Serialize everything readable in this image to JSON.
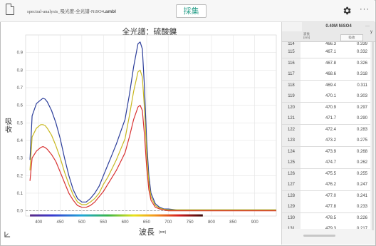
{
  "header": {
    "filename_prefix": "spectral-analysis_吸光度-全光譜-NiSO4",
    "filename_ext": ".ambl",
    "collect_label": "採集",
    "more_label": "···"
  },
  "icons": {
    "document": "document-icon",
    "settings": "gear-icon",
    "more": "more-icon",
    "axis_tool": "axis-scale-icon"
  },
  "chart": {
    "title": "全光譜：硫酸鎳",
    "ylabel": "吸收",
    "xlabel": "波長",
    "xunit": "(nm)"
  },
  "chart_data": {
    "type": "line",
    "title": "全光譜：硫酸鎳",
    "xlabel": "波長 (nm)",
    "ylabel": "吸收",
    "xlim": [
      370,
      950
    ],
    "ylim": [
      -0.03,
      1.0
    ],
    "xticks": [
      400,
      450,
      500,
      550,
      600,
      650,
      700,
      750,
      800,
      850,
      900
    ],
    "yticks": [
      0.0,
      0.1,
      0.2,
      0.3,
      0.4,
      0.5,
      0.6,
      0.7,
      0.8,
      0.9
    ],
    "grid": true,
    "legend": "none",
    "series": [
      {
        "color": "#2b3d9a",
        "x": [
          380,
          385,
          395,
          405,
          410,
          415,
          420,
          430,
          440,
          450,
          460,
          470,
          480,
          490,
          500,
          510,
          520,
          530,
          540,
          550,
          560,
          570,
          580,
          590,
          600,
          610,
          620,
          630,
          635,
          640,
          645,
          650,
          655,
          660,
          670,
          680,
          690,
          700,
          720,
          750,
          800,
          850,
          900,
          950
        ],
        "y": [
          0.29,
          0.54,
          0.61,
          0.63,
          0.64,
          0.635,
          0.62,
          0.57,
          0.5,
          0.41,
          0.3,
          0.2,
          0.12,
          0.07,
          0.05,
          0.05,
          0.07,
          0.1,
          0.14,
          0.2,
          0.26,
          0.32,
          0.38,
          0.45,
          0.52,
          0.66,
          0.82,
          0.95,
          0.96,
          0.92,
          0.7,
          0.4,
          0.2,
          0.1,
          0.04,
          0.02,
          0.01,
          0.01,
          0.005,
          0.005,
          0.005,
          0.005,
          0.005,
          0.005
        ]
      },
      {
        "color": "#c8b821",
        "x": [
          380,
          385,
          395,
          405,
          410,
          415,
          420,
          430,
          440,
          450,
          460,
          470,
          480,
          490,
          500,
          510,
          520,
          530,
          540,
          550,
          560,
          570,
          580,
          590,
          600,
          610,
          620,
          630,
          635,
          640,
          645,
          650,
          655,
          660,
          670,
          680,
          690,
          700,
          720,
          750,
          800,
          850,
          900,
          950
        ],
        "y": [
          0.23,
          0.42,
          0.47,
          0.49,
          0.49,
          0.485,
          0.47,
          0.43,
          0.37,
          0.3,
          0.22,
          0.15,
          0.09,
          0.05,
          0.035,
          0.035,
          0.05,
          0.07,
          0.1,
          0.15,
          0.19,
          0.24,
          0.29,
          0.35,
          0.41,
          0.54,
          0.68,
          0.79,
          0.8,
          0.76,
          0.58,
          0.33,
          0.16,
          0.08,
          0.03,
          0.015,
          0.008,
          0.005,
          0.005,
          0.005,
          0.005,
          0.005,
          0.005,
          0.005
        ]
      },
      {
        "color": "#d83232",
        "x": [
          380,
          385,
          395,
          405,
          410,
          415,
          420,
          430,
          440,
          450,
          460,
          470,
          480,
          490,
          500,
          510,
          520,
          530,
          540,
          550,
          560,
          570,
          580,
          590,
          600,
          610,
          620,
          630,
          635,
          640,
          645,
          650,
          655,
          660,
          670,
          680,
          690,
          700,
          720,
          750,
          800,
          850,
          900,
          950
        ],
        "y": [
          0.17,
          0.3,
          0.34,
          0.36,
          0.365,
          0.36,
          0.35,
          0.32,
          0.28,
          0.22,
          0.16,
          0.1,
          0.06,
          0.03,
          0.02,
          0.02,
          0.03,
          0.05,
          0.08,
          0.11,
          0.15,
          0.19,
          0.23,
          0.28,
          0.33,
          0.42,
          0.52,
          0.59,
          0.6,
          0.57,
          0.43,
          0.25,
          0.12,
          0.06,
          0.02,
          0.01,
          0.005,
          0.0,
          0.0,
          0.0,
          0.0,
          0.0,
          0.0,
          0.0
        ]
      }
    ]
  },
  "table": {
    "column_group": "0.40M NiSO4",
    "menu_label": "···",
    "wavelength_header": "波長\n(nm)",
    "absorbance_header": "吸收",
    "y_label": "y",
    "rows": [
      {
        "idx": "114",
        "wl": "466.3",
        "abs": "0.339"
      },
      {
        "idx": "115",
        "wl": "467.1",
        "abs": "0.332"
      },
      {
        "idx": "116",
        "wl": "467.8",
        "abs": "0.326"
      },
      {
        "idx": "117",
        "wl": "468.6",
        "abs": "0.318"
      },
      {
        "idx": "118",
        "wl": "469.4",
        "abs": "0.311"
      },
      {
        "idx": "119",
        "wl": "470.1",
        "abs": "0.303"
      },
      {
        "idx": "120",
        "wl": "470.9",
        "abs": "0.297"
      },
      {
        "idx": "121",
        "wl": "471.7",
        "abs": "0.290"
      },
      {
        "idx": "122",
        "wl": "472.4",
        "abs": "0.283"
      },
      {
        "idx": "123",
        "wl": "473.2",
        "abs": "0.275"
      },
      {
        "idx": "124",
        "wl": "473.9",
        "abs": "0.268"
      },
      {
        "idx": "125",
        "wl": "474.7",
        "abs": "0.262"
      },
      {
        "idx": "126",
        "wl": "475.5",
        "abs": "0.255"
      },
      {
        "idx": "127",
        "wl": "476.2",
        "abs": "0.247"
      },
      {
        "idx": "128",
        "wl": "477.0",
        "abs": "0.241"
      },
      {
        "idx": "129",
        "wl": "477.8",
        "abs": "0.233"
      },
      {
        "idx": "130",
        "wl": "478.5",
        "abs": "0.226"
      },
      {
        "idx": "131",
        "wl": "479.3",
        "abs": "0.217"
      }
    ]
  }
}
